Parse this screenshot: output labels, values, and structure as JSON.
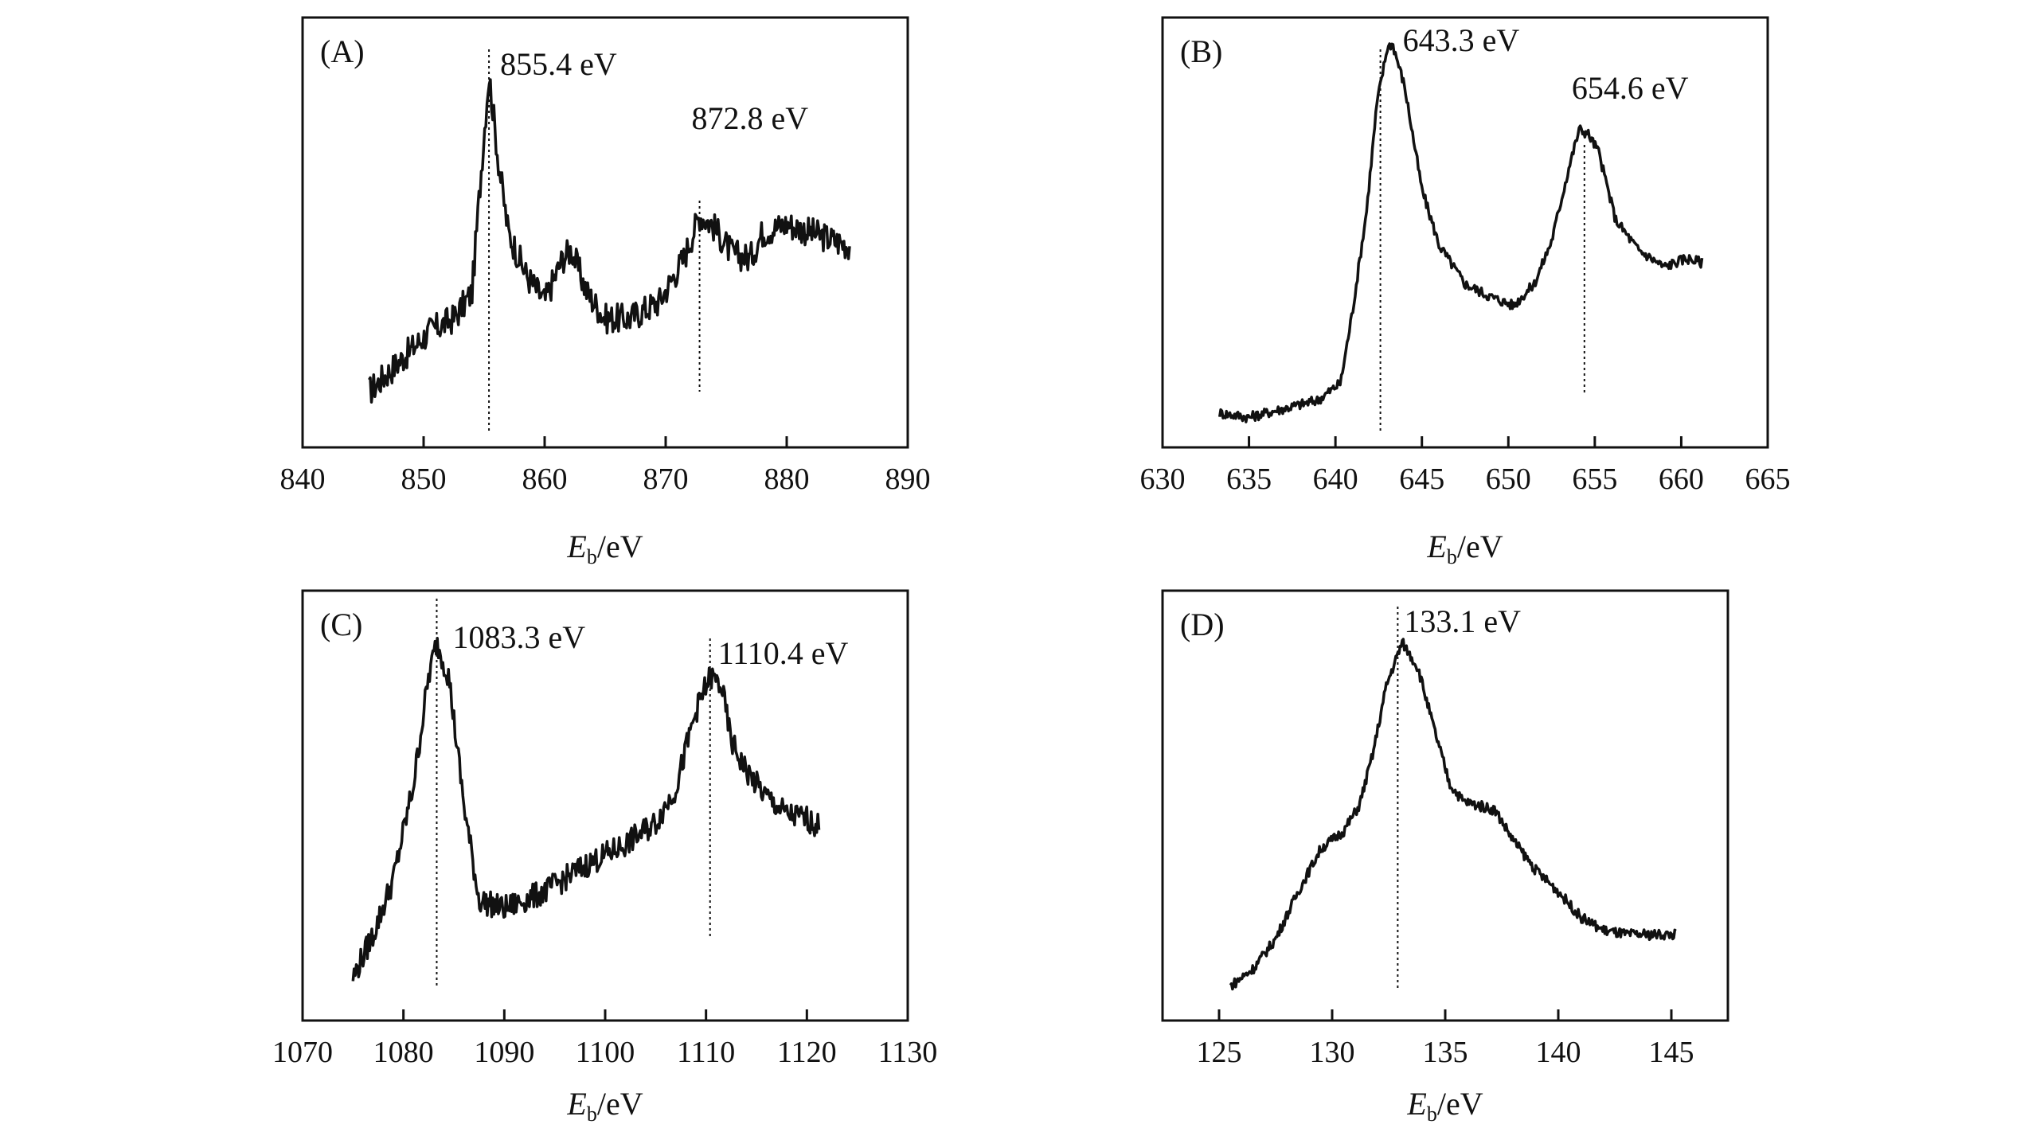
{
  "chart_data": [
    {
      "type": "line",
      "panel_label": "(A)",
      "xlabel": "E",
      "xlabel_sub": "b",
      "xlabel_unit": "/eV",
      "xlim": [
        840,
        890
      ],
      "xticks": [
        840,
        850,
        860,
        870,
        880,
        890
      ],
      "ylim": [
        0,
        1
      ],
      "grid": false,
      "series": [
        {
          "x": [
            845.5,
            848,
            850.5,
            852.5,
            854,
            854.8,
            855.4,
            856.2,
            857,
            858.5,
            860,
            861.5,
            862.2,
            863.5,
            865,
            867,
            869.5,
            871.5,
            872.8,
            873.8,
            875.5,
            877,
            878,
            880,
            882,
            884,
            885.2
          ],
          "y": [
            0.13,
            0.2,
            0.27,
            0.3,
            0.36,
            0.66,
            0.87,
            0.66,
            0.5,
            0.4,
            0.34,
            0.44,
            0.46,
            0.36,
            0.3,
            0.3,
            0.34,
            0.44,
            0.54,
            0.52,
            0.45,
            0.44,
            0.5,
            0.52,
            0.5,
            0.48,
            0.47
          ]
        }
      ],
      "annotations": [
        {
          "text": "855.4 eV",
          "x": 855.4
        },
        {
          "text": "872.8 eV",
          "x": 872.8
        }
      ]
    },
    {
      "type": "line",
      "panel_label": "(B)",
      "xlabel": "E",
      "xlabel_sub": "b",
      "xlabel_unit": "/eV",
      "xlim": [
        630,
        665
      ],
      "xticks": [
        630,
        635,
        640,
        645,
        650,
        655,
        660,
        665
      ],
      "ylim": [
        0,
        1
      ],
      "grid": false,
      "series": [
        {
          "x": [
            633.3,
            635,
            637,
            639,
            640.3,
            641,
            641.8,
            642.4,
            643,
            643.3,
            644,
            645,
            646,
            647.5,
            649,
            650.3,
            651.5,
            652.5,
            653.5,
            654.1,
            654.6,
            655.2,
            656.2,
            657.5,
            659,
            660.3,
            661.2
          ],
          "y": [
            0.08,
            0.07,
            0.09,
            0.11,
            0.15,
            0.32,
            0.55,
            0.8,
            0.93,
            0.94,
            0.84,
            0.6,
            0.47,
            0.38,
            0.35,
            0.33,
            0.38,
            0.48,
            0.65,
            0.74,
            0.73,
            0.69,
            0.53,
            0.46,
            0.42,
            0.44,
            0.43
          ]
        }
      ],
      "annotations": [
        {
          "text": "643.3 eV",
          "x": 642.6
        },
        {
          "text": "654.6 eV",
          "x": 654.4
        }
      ]
    },
    {
      "type": "line",
      "panel_label": "(C)",
      "xlabel": "E",
      "xlabel_sub": "b",
      "xlabel_unit": "/eV",
      "xlim": [
        1070,
        1130
      ],
      "xticks": [
        1070,
        1080,
        1090,
        1100,
        1110,
        1120,
        1130
      ],
      "ylim": [
        0,
        1
      ],
      "grid": false,
      "series": [
        {
          "x": [
            1075,
            1077,
            1079,
            1081,
            1082.5,
            1083.3,
            1084.5,
            1086,
            1087.5,
            1090,
            1094,
            1098,
            1102,
            1105,
            1107,
            1109,
            1110.4,
            1111.5,
            1112.5,
            1114,
            1116,
            1118,
            1120,
            1121.2
          ],
          "y": [
            0.1,
            0.2,
            0.33,
            0.55,
            0.8,
            0.88,
            0.8,
            0.5,
            0.28,
            0.26,
            0.3,
            0.36,
            0.41,
            0.46,
            0.54,
            0.72,
            0.8,
            0.78,
            0.65,
            0.58,
            0.52,
            0.48,
            0.47,
            0.45
          ]
        }
      ],
      "annotations": [
        {
          "text": "1083.3 eV",
          "x": 1083.3
        },
        {
          "text": "1110.4 eV",
          "x": 1110.4
        }
      ]
    },
    {
      "type": "line",
      "panel_label": "(D)",
      "xlabel": "E",
      "xlabel_sub": "b",
      "xlabel_unit": "/eV",
      "xlim": [
        122.5,
        147.5
      ],
      "xticks": [
        125,
        130,
        135,
        140,
        145
      ],
      "ylim": [
        0,
        1
      ],
      "grid": false,
      "series": [
        {
          "x": [
            125.5,
            126.5,
            127.5,
            128.5,
            129.5,
            130.5,
            131.2,
            131.8,
            132.4,
            133.1,
            133.8,
            134.5,
            135.2,
            135.8,
            136.5,
            137.2,
            138,
            139,
            140,
            141,
            142,
            143,
            144,
            145.2
          ],
          "y": [
            0.08,
            0.12,
            0.19,
            0.3,
            0.4,
            0.44,
            0.5,
            0.62,
            0.78,
            0.88,
            0.82,
            0.68,
            0.55,
            0.51,
            0.5,
            0.49,
            0.42,
            0.35,
            0.3,
            0.24,
            0.21,
            0.2,
            0.2,
            0.2
          ]
        }
      ],
      "annotations": [
        {
          "text": "133.1 eV",
          "x": 132.9
        }
      ]
    }
  ]
}
